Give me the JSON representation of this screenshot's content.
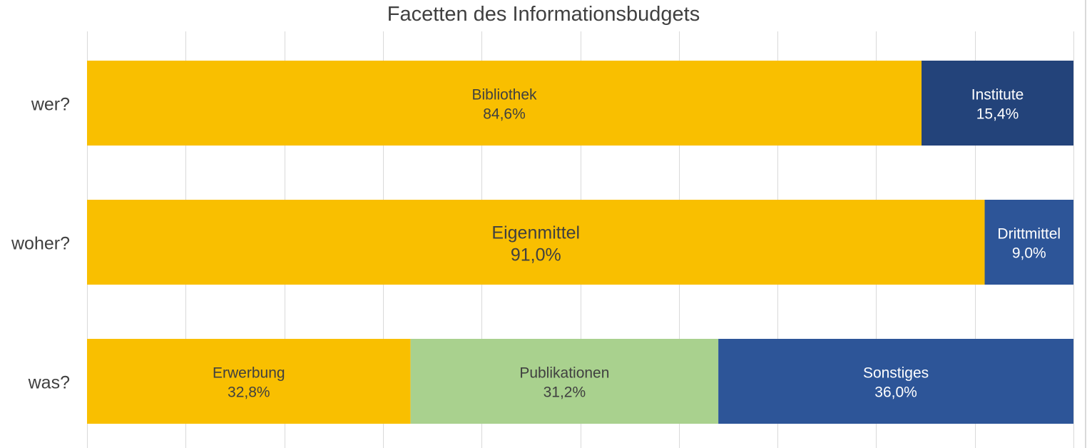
{
  "chart_data": {
    "type": "bar",
    "orientation": "horizontal",
    "stacked": true,
    "percent_stacked": true,
    "title": "Facetten des Informationsbudgets",
    "xlabel": "",
    "ylabel": "",
    "xlim": [
      0,
      100
    ],
    "grid": true,
    "legend": "none",
    "categories": [
      "wer?",
      "woher?",
      "was?"
    ],
    "rows": [
      {
        "category": "wer?",
        "segments": [
          {
            "label": "Bibliothek",
            "value": 84.6,
            "value_label": "84,6%",
            "color": "#f9bf00",
            "text_color": "#404040"
          },
          {
            "label": "Institute",
            "value": 15.4,
            "value_label": "15,4%",
            "color": "#23437a",
            "text_color": "#ffffff"
          }
        ]
      },
      {
        "category": "woher?",
        "segments": [
          {
            "label": "Eigenmittel",
            "value": 91.0,
            "value_label": "91,0%",
            "color": "#f9bf00",
            "text_color": "#404040",
            "large": true
          },
          {
            "label": "Drittmittel",
            "value": 9.0,
            "value_label": "9,0%",
            "color": "#2d5598",
            "text_color": "#ffffff"
          }
        ]
      },
      {
        "category": "was?",
        "segments": [
          {
            "label": "Erwerbung",
            "value": 32.8,
            "value_label": "32,8%",
            "color": "#f9bf00",
            "text_color": "#404040"
          },
          {
            "label": "Publikationen",
            "value": 31.2,
            "value_label": "31,2%",
            "color": "#a9d18e",
            "text_color": "#404040"
          },
          {
            "label": "Sonstiges",
            "value": 36.0,
            "value_label": "36,0%",
            "color": "#2d5598",
            "text_color": "#ffffff"
          }
        ]
      }
    ]
  }
}
